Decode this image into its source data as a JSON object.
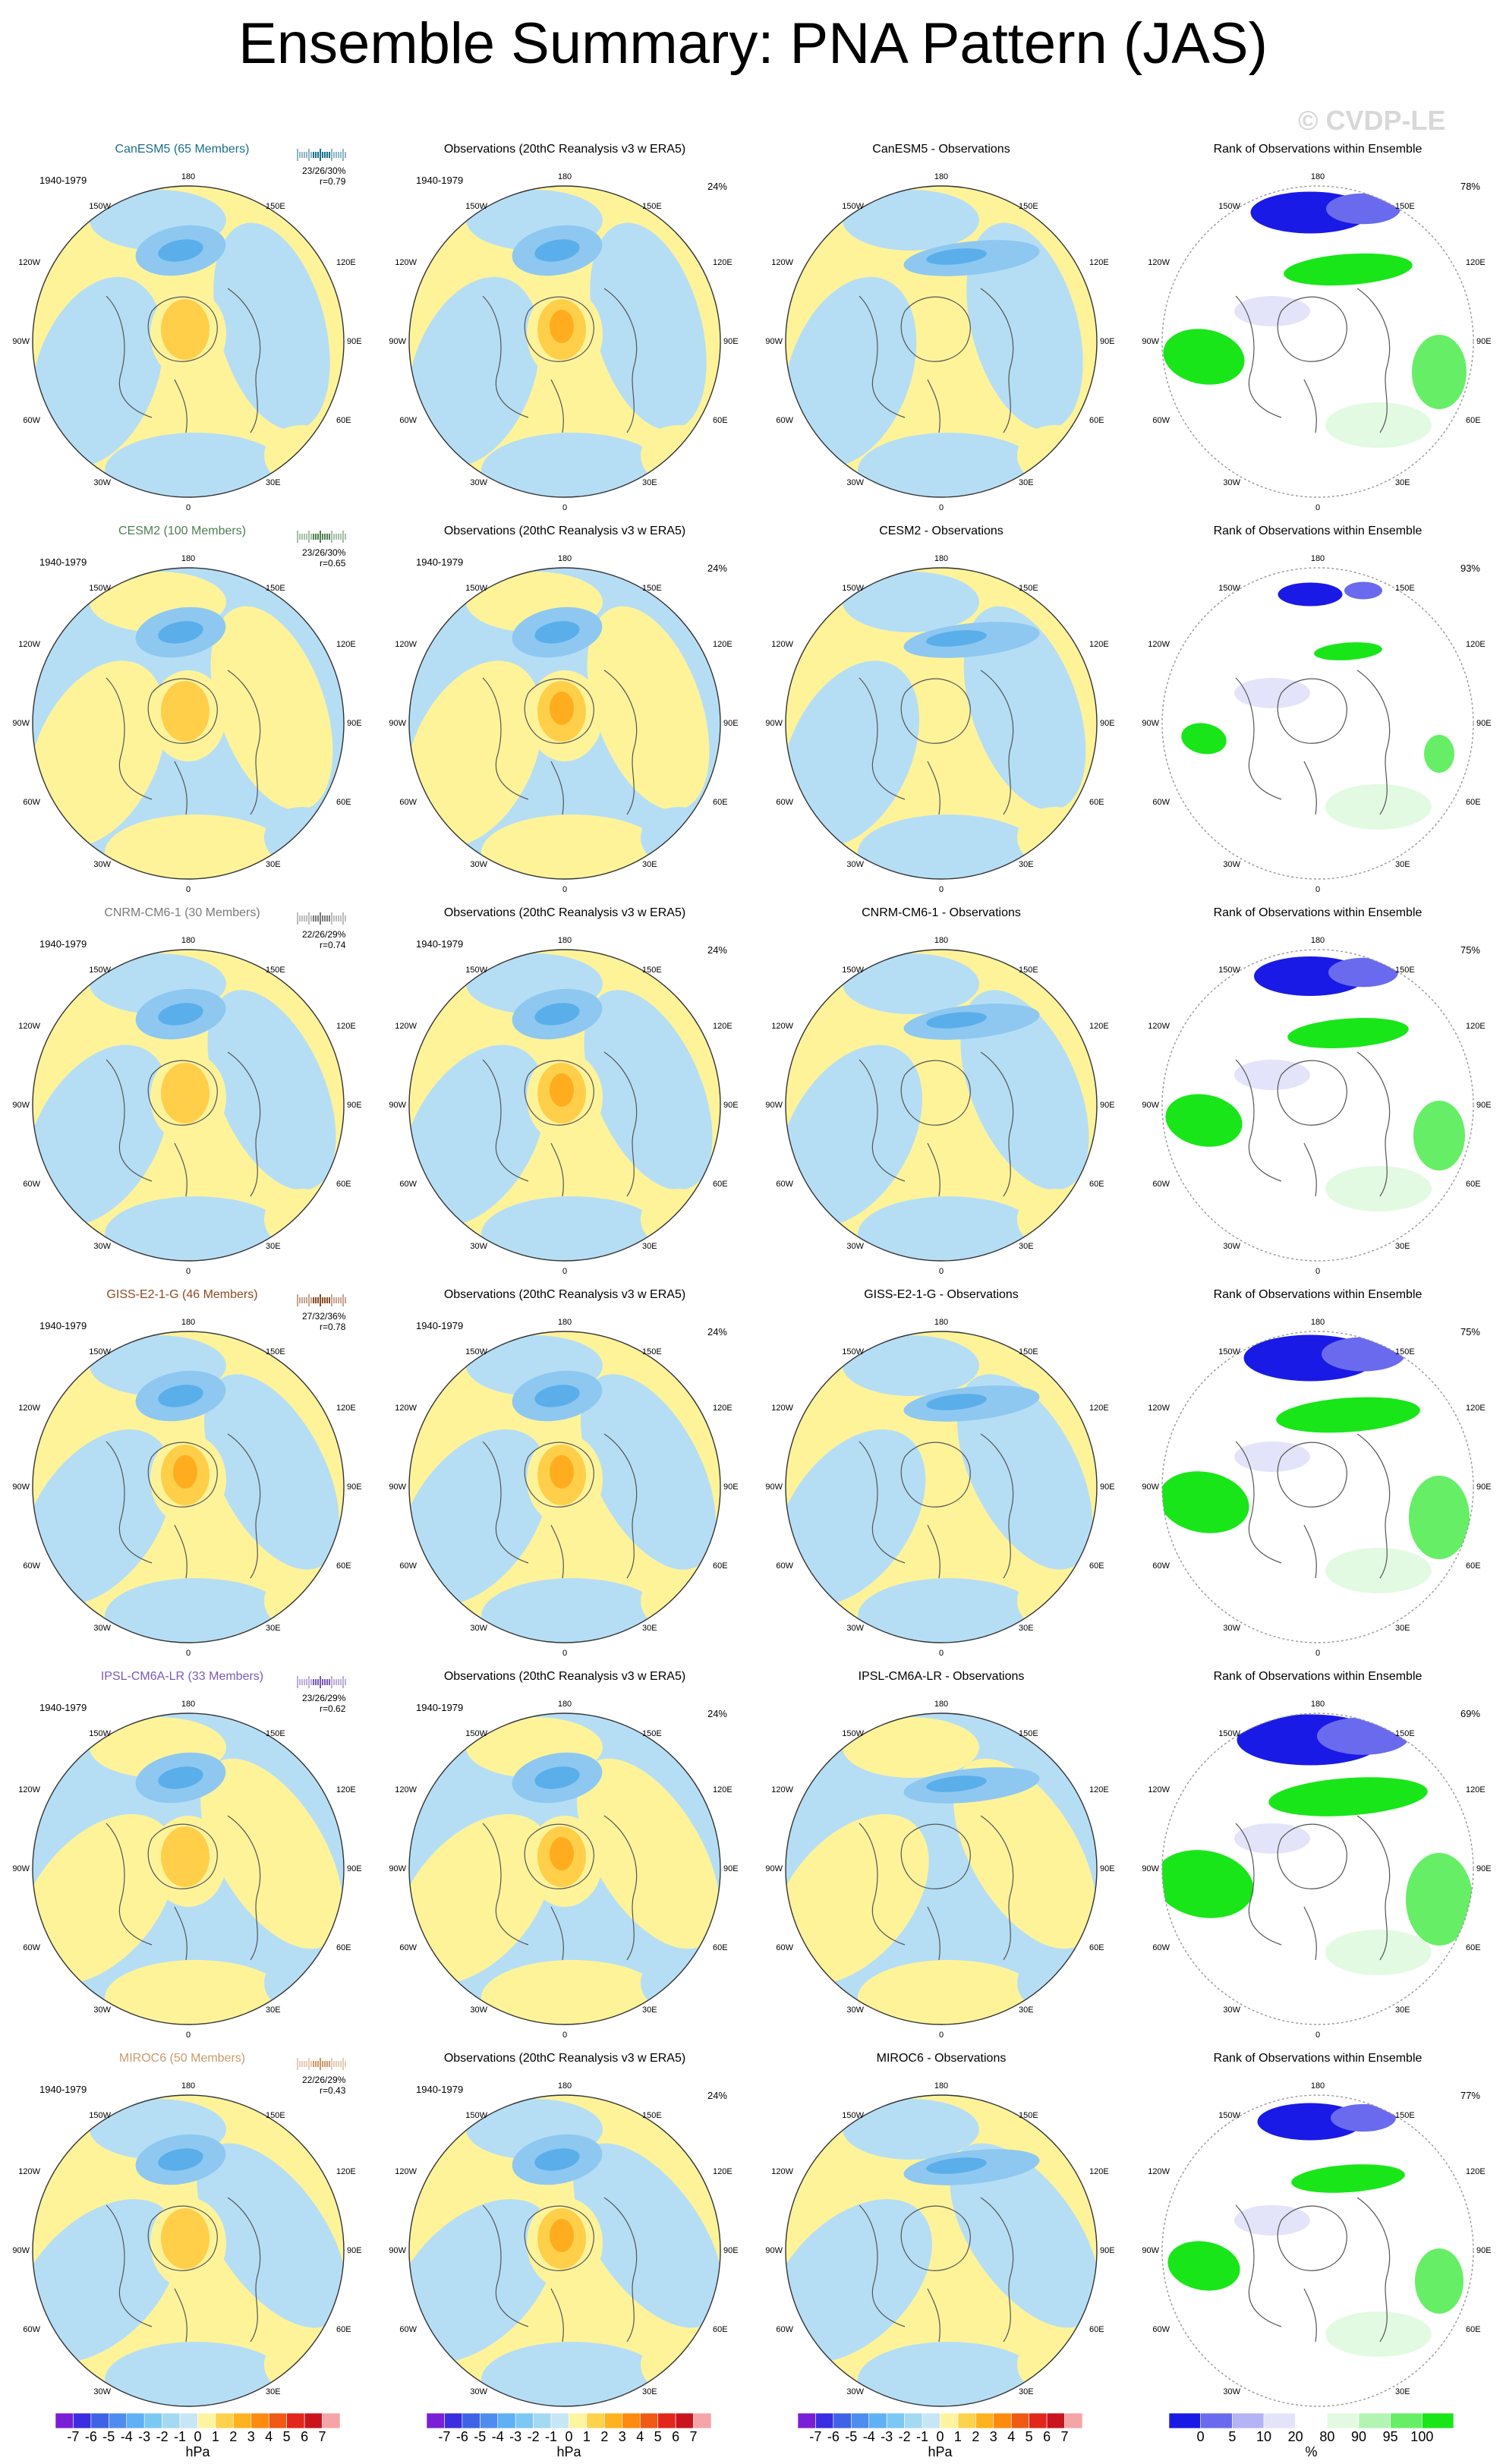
{
  "title": "Ensemble Summary: PNA Pattern (JAS)",
  "watermark": "© CVDP-LE",
  "models": [
    {
      "name": "CanESM5 (65 Members)",
      "short": "CanESM5",
      "color": "#1a6f8a",
      "stats": "23/26/30%",
      "r": "r=0.79",
      "rank_pct": "78%",
      "rank_fill": 0.65
    },
    {
      "name": "CESM2 (100 Members)",
      "short": "CESM2",
      "color": "#4e7f52",
      "stats": "23/26/30%",
      "r": "r=0.65",
      "rank_pct": "93%",
      "rank_fill": 0.25
    },
    {
      "name": "CNRM-CM6-1 (30 Members)",
      "short": "CNRM-CM6-1",
      "color": "#7a7a7a",
      "stats": "22/26/29%",
      "r": "r=0.74",
      "rank_pct": "75%",
      "rank_fill": 0.6
    },
    {
      "name": "GISS-E2-1-G (46 Members)",
      "short": "GISS-E2-1-G",
      "color": "#8b4a22",
      "stats": "27/32/36%",
      "r": "r=0.78",
      "rank_pct": "75%",
      "rank_fill": 0.75
    },
    {
      "name": "IPSL-CM6A-LR (33 Members)",
      "short": "IPSL-CM6A-LR",
      "color": "#7b5bb6",
      "stats": "23/26/29%",
      "r": "r=0.62",
      "rank_pct": "69%",
      "rank_fill": 0.85
    },
    {
      "name": "MIROC6 (50 Members)",
      "short": "MIROC6",
      "color": "#c99a6b",
      "stats": "22/26/29%",
      "r": "r=0.43",
      "rank_pct": "77%",
      "rank_fill": 0.55
    }
  ],
  "ensemble_period": "1940-1979",
  "obs_title": "Observations (20thC Reanalysis v3 w ERA5)",
  "obs_period": "1940-1979",
  "obs_pct": "24%",
  "diff_suffix": " - Observations",
  "rank_title": "Rank of Observations within Ensemble",
  "map_labels": {
    "top": "180",
    "tl": "150W",
    "tr": "150E",
    "ul": "120W",
    "ur": "120E",
    "ml": "90W",
    "mr": "90E",
    "ll": "60W",
    "lr": "60E",
    "bl": "30W",
    "br": "30E",
    "bottom": "0"
  },
  "colorbar_hpa": {
    "ticks": [
      "-7",
      "-6",
      "-5",
      "-4",
      "-3",
      "-2",
      "-1",
      "0",
      "1",
      "2",
      "3",
      "4",
      "5",
      "6",
      "7"
    ],
    "colors": [
      "#7a1fd6",
      "#3b2ee0",
      "#3f63e6",
      "#4f8cf0",
      "#5fb0f4",
      "#7cc8f4",
      "#a4d9f2",
      "#c6e6f5",
      "#fff5a0",
      "#ffd24d",
      "#ffb21f",
      "#ff8a10",
      "#f05a14",
      "#e3261c",
      "#c9141e",
      "#f5a4a8"
    ],
    "unit": "hPa"
  },
  "colorbar_rank": {
    "ticks": [
      "0",
      "5",
      "10",
      "20",
      "80",
      "90",
      "95",
      "100"
    ],
    "colors": [
      "#1a1ae6",
      "#6a6aee",
      "#b3b3f5",
      "#e3e3fa",
      "#ffffff",
      "#e2fae2",
      "#b3f3b3",
      "#66ef66",
      "#19e619"
    ],
    "unit": "%"
  }
}
